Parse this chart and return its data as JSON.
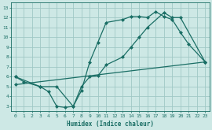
{
  "xlabel": "Humidex (Indice chaleur)",
  "bg_color": "#cde8e5",
  "grid_color": "#a0c8c5",
  "line_color": "#1a6e65",
  "xlim": [
    -0.5,
    23.5
  ],
  "ylim": [
    2.5,
    13.5
  ],
  "xticks": [
    0,
    1,
    2,
    3,
    4,
    5,
    6,
    7,
    8,
    9,
    10,
    11,
    12,
    13,
    14,
    15,
    16,
    17,
    18,
    19,
    20,
    21,
    22,
    23
  ],
  "yticks": [
    3,
    4,
    5,
    6,
    7,
    8,
    9,
    10,
    11,
    12,
    13
  ],
  "line1_x": [
    0,
    1,
    3,
    4,
    5,
    6,
    7,
    8,
    9,
    10,
    11,
    13,
    14,
    15,
    16,
    17,
    18,
    19,
    20,
    21,
    23
  ],
  "line1_y": [
    6,
    5.5,
    5,
    4.5,
    3.0,
    2.9,
    3.0,
    4.6,
    7.5,
    9.5,
    11.5,
    11.8,
    12.1,
    12.1,
    12.0,
    12.6,
    12.1,
    11.8,
    10.5,
    9.3,
    7.5
  ],
  "line2_x": [
    0,
    3,
    5,
    7,
    8,
    9,
    10,
    11,
    13,
    14,
    15,
    16,
    18,
    19,
    20,
    23
  ],
  "line2_y": [
    6,
    5,
    5,
    3,
    5,
    6,
    6.1,
    7.2,
    8.0,
    9.0,
    10.0,
    11.0,
    12.5,
    12.0,
    12.0,
    7.5
  ],
  "line3_x": [
    0,
    23
  ],
  "line3_y": [
    5.2,
    7.5
  ]
}
